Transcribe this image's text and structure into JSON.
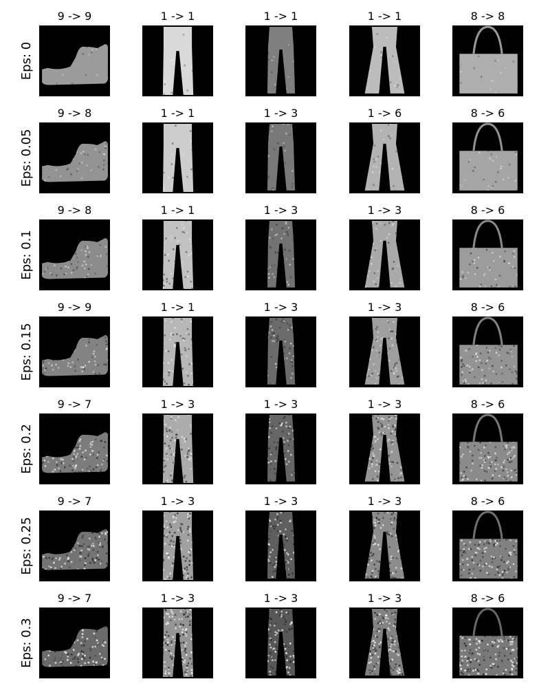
{
  "chart_data": {
    "type": "image_grid",
    "title": "",
    "row_labels": [
      "Eps: 0",
      "Eps: 0.05",
      "Eps: 0.1",
      "Eps: 0.15",
      "Eps: 0.2",
      "Eps: 0.25",
      "Eps: 0.3"
    ],
    "epsilons": [
      0,
      0.05,
      0.1,
      0.15,
      0.2,
      0.25,
      0.3
    ],
    "columns": [
      {
        "item": "ankle-boot",
        "original_label": 9
      },
      {
        "item": "trousers",
        "original_label": 1
      },
      {
        "item": "sparse-trousers",
        "original_label": 1
      },
      {
        "item": "flared-trousers",
        "original_label": 1
      },
      {
        "item": "handbag",
        "original_label": 8
      }
    ],
    "titles": [
      [
        "9 -> 9",
        "1 -> 1",
        "1 -> 1",
        "1 -> 1",
        "8 -> 8"
      ],
      [
        "9 -> 8",
        "1 -> 1",
        "1 -> 3",
        "1 -> 6",
        "8 -> 6"
      ],
      [
        "9 -> 8",
        "1 -> 1",
        "1 -> 3",
        "1 -> 3",
        "8 -> 6"
      ],
      [
        "9 -> 9",
        "1 -> 1",
        "1 -> 3",
        "1 -> 3",
        "8 -> 6"
      ],
      [
        "9 -> 7",
        "1 -> 3",
        "1 -> 3",
        "1 -> 3",
        "8 -> 6"
      ],
      [
        "9 -> 7",
        "1 -> 3",
        "1 -> 3",
        "1 -> 3",
        "8 -> 6"
      ],
      [
        "9 -> 7",
        "1 -> 3",
        "1 -> 3",
        "1 -> 3",
        "8 -> 6"
      ]
    ],
    "grid": false,
    "axes_ticks": false
  }
}
